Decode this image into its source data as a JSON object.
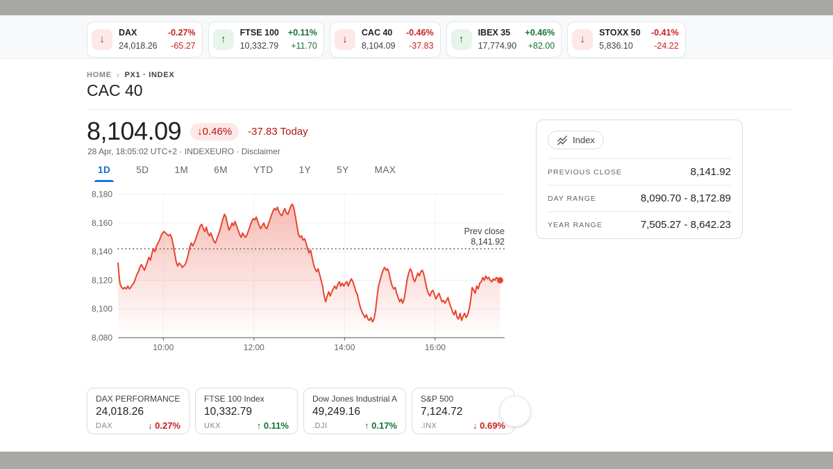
{
  "ticker": {
    "items": [
      {
        "name": "DAX",
        "value": "24,018.26",
        "pct": "-0.27%",
        "change": "-65.27",
        "direction": "down",
        "glyph": "↓"
      },
      {
        "name": "FTSE 100",
        "value": "10,332.79",
        "pct": "+0.11%",
        "change": "+11.70",
        "direction": "up",
        "glyph": "↑"
      },
      {
        "name": "CAC 40",
        "value": "8,104.09",
        "pct": "-0.46%",
        "change": "-37.83",
        "direction": "down",
        "glyph": "↓"
      },
      {
        "name": "IBEX 35",
        "value": "17,774.90",
        "pct": "+0.46%",
        "change": "+82.00",
        "direction": "up",
        "glyph": "↑"
      },
      {
        "name": "STOXX 50",
        "value": "5,836.10",
        "pct": "-0.41%",
        "change": "-24.22",
        "direction": "down",
        "glyph": "↓"
      }
    ]
  },
  "breadcrumb": {
    "home": "HOME",
    "separator": "›",
    "current": "PX1 · INDEX"
  },
  "header": {
    "title": "CAC 40"
  },
  "quote": {
    "price": "8,104.09",
    "badge": {
      "glyph": "↓",
      "pct": "0.46%"
    },
    "change_today": "-37.83 Today",
    "meta_prefix": "28 Apr, 18:05:02 UTC+2 · INDEXEURO · ",
    "disclaimer": "Disclaimer"
  },
  "tabs": [
    {
      "label": "1D"
    },
    {
      "label": "5D"
    },
    {
      "label": "1M"
    },
    {
      "label": "6M"
    },
    {
      "label": "YTD"
    },
    {
      "label": "1Y"
    },
    {
      "label": "5Y"
    },
    {
      "label": "MAX"
    }
  ],
  "chart_data": {
    "type": "line",
    "title": "CAC 40 intraday price",
    "line_color": "#e8442e",
    "grid": true,
    "xlim": [
      540,
      1052
    ],
    "ylim": [
      8080,
      8180
    ],
    "x_ticks": [
      {
        "t": 600,
        "label": "10:00"
      },
      {
        "t": 720,
        "label": "12:00"
      },
      {
        "t": 840,
        "label": "14:00"
      },
      {
        "t": 960,
        "label": "16:00"
      }
    ],
    "y_ticks": [
      {
        "v": 8080,
        "label": "8,080"
      },
      {
        "v": 8100,
        "label": "8,100"
      },
      {
        "v": 8120,
        "label": "8,120"
      },
      {
        "v": 8140,
        "label": "8,140"
      },
      {
        "v": 8160,
        "label": "8,160"
      },
      {
        "v": 8180,
        "label": "8,180"
      }
    ],
    "prev_close": {
      "value": 8141.92,
      "label_line1": "Prev close",
      "label_line2": "8,141.92"
    },
    "series": [
      {
        "name": "CAC 40",
        "points": [
          [
            540,
            8132
          ],
          [
            541,
            8126
          ],
          [
            542,
            8120
          ],
          [
            543,
            8117
          ],
          [
            545,
            8115
          ],
          [
            547,
            8114
          ],
          [
            549,
            8115
          ],
          [
            551,
            8114
          ],
          [
            553,
            8116
          ],
          [
            555,
            8114
          ],
          [
            557,
            8115
          ],
          [
            559,
            8117
          ],
          [
            561,
            8118
          ],
          [
            563,
            8121
          ],
          [
            565,
            8124
          ],
          [
            567,
            8126
          ],
          [
            569,
            8129
          ],
          [
            571,
            8131
          ],
          [
            573,
            8129
          ],
          [
            575,
            8127
          ],
          [
            577,
            8130
          ],
          [
            579,
            8133
          ],
          [
            581,
            8136
          ],
          [
            583,
            8134
          ],
          [
            585,
            8139
          ],
          [
            587,
            8142
          ],
          [
            589,
            8140
          ],
          [
            591,
            8144
          ],
          [
            593,
            8146
          ],
          [
            595,
            8148
          ],
          [
            597,
            8151
          ],
          [
            599,
            8153
          ],
          [
            601,
            8154
          ],
          [
            603,
            8153
          ],
          [
            605,
            8152
          ],
          [
            607,
            8151
          ],
          [
            609,
            8152
          ],
          [
            611,
            8150
          ],
          [
            613,
            8145
          ],
          [
            615,
            8139
          ],
          [
            617,
            8133
          ],
          [
            619,
            8130
          ],
          [
            621,
            8132
          ],
          [
            623,
            8131
          ],
          [
            625,
            8129
          ],
          [
            627,
            8130
          ],
          [
            629,
            8131
          ],
          [
            631,
            8134
          ],
          [
            633,
            8138
          ],
          [
            635,
            8143
          ],
          [
            637,
            8146
          ],
          [
            639,
            8144
          ],
          [
            641,
            8146
          ],
          [
            643,
            8149
          ],
          [
            645,
            8152
          ],
          [
            647,
            8155
          ],
          [
            649,
            8158
          ],
          [
            651,
            8159
          ],
          [
            653,
            8156
          ],
          [
            655,
            8154
          ],
          [
            657,
            8157
          ],
          [
            659,
            8153
          ],
          [
            661,
            8151
          ],
          [
            663,
            8153
          ],
          [
            665,
            8150
          ],
          [
            667,
            8147
          ],
          [
            669,
            8146
          ],
          [
            671,
            8149
          ],
          [
            673,
            8152
          ],
          [
            675,
            8155
          ],
          [
            677,
            8159
          ],
          [
            679,
            8163
          ],
          [
            681,
            8166
          ],
          [
            683,
            8164
          ],
          [
            685,
            8159
          ],
          [
            687,
            8155
          ],
          [
            689,
            8157
          ],
          [
            691,
            8160
          ],
          [
            693,
            8158
          ],
          [
            695,
            8161
          ],
          [
            697,
            8158
          ],
          [
            699,
            8155
          ],
          [
            701,
            8152
          ],
          [
            703,
            8150
          ],
          [
            705,
            8153
          ],
          [
            707,
            8151
          ],
          [
            709,
            8150
          ],
          [
            711,
            8152
          ],
          [
            713,
            8155
          ],
          [
            715,
            8158
          ],
          [
            717,
            8161
          ],
          [
            719,
            8163
          ],
          [
            721,
            8162
          ],
          [
            723,
            8164
          ],
          [
            725,
            8161
          ],
          [
            727,
            8158
          ],
          [
            729,
            8156
          ],
          [
            731,
            8158
          ],
          [
            733,
            8160
          ],
          [
            735,
            8157
          ],
          [
            737,
            8156
          ],
          [
            739,
            8159
          ],
          [
            741,
            8162
          ],
          [
            743,
            8165
          ],
          [
            745,
            8168
          ],
          [
            747,
            8170
          ],
          [
            749,
            8169
          ],
          [
            751,
            8171
          ],
          [
            753,
            8168
          ],
          [
            755,
            8166
          ],
          [
            757,
            8165
          ],
          [
            759,
            8168
          ],
          [
            761,
            8170
          ],
          [
            763,
            8167
          ],
          [
            765,
            8166
          ],
          [
            767,
            8169
          ],
          [
            769,
            8172
          ],
          [
            771,
            8173
          ],
          [
            773,
            8170
          ],
          [
            775,
            8164
          ],
          [
            777,
            8158
          ],
          [
            779,
            8152
          ],
          [
            781,
            8150
          ],
          [
            783,
            8151
          ],
          [
            785,
            8148
          ],
          [
            787,
            8149
          ],
          [
            789,
            8146
          ],
          [
            791,
            8142
          ],
          [
            793,
            8139
          ],
          [
            795,
            8141
          ],
          [
            797,
            8136
          ],
          [
            799,
            8131
          ],
          [
            801,
            8128
          ],
          [
            803,
            8126
          ],
          [
            805,
            8128
          ],
          [
            807,
            8124
          ],
          [
            809,
            8120
          ],
          [
            811,
            8116
          ],
          [
            813,
            8109
          ],
          [
            815,
            8105
          ],
          [
            817,
            8109
          ],
          [
            819,
            8112
          ],
          [
            821,
            8109
          ],
          [
            823,
            8112
          ],
          [
            825,
            8114
          ],
          [
            827,
            8116
          ],
          [
            829,
            8114
          ],
          [
            831,
            8117
          ],
          [
            833,
            8119
          ],
          [
            835,
            8116
          ],
          [
            837,
            8118
          ],
          [
            839,
            8116
          ],
          [
            841,
            8118
          ],
          [
            843,
            8119
          ],
          [
            845,
            8116
          ],
          [
            847,
            8119
          ],
          [
            849,
            8121
          ],
          [
            851,
            8119
          ],
          [
            853,
            8116
          ],
          [
            855,
            8112
          ],
          [
            857,
            8110
          ],
          [
            859,
            8105
          ],
          [
            861,
            8101
          ],
          [
            863,
            8098
          ],
          [
            865,
            8096
          ],
          [
            867,
            8094
          ],
          [
            869,
            8096
          ],
          [
            871,
            8093
          ],
          [
            873,
            8092
          ],
          [
            875,
            8094
          ],
          [
            877,
            8091
          ],
          [
            879,
            8093
          ],
          [
            881,
            8099
          ],
          [
            883,
            8108
          ],
          [
            885,
            8116
          ],
          [
            887,
            8120
          ],
          [
            889,
            8124
          ],
          [
            891,
            8127
          ],
          [
            893,
            8129
          ],
          [
            895,
            8127
          ],
          [
            897,
            8128
          ],
          [
            899,
            8125
          ],
          [
            901,
            8120
          ],
          [
            903,
            8116
          ],
          [
            905,
            8114
          ],
          [
            907,
            8115
          ],
          [
            909,
            8111
          ],
          [
            911,
            8108
          ],
          [
            913,
            8105
          ],
          [
            915,
            8107
          ],
          [
            917,
            8104
          ],
          [
            919,
            8107
          ],
          [
            921,
            8114
          ],
          [
            923,
            8121
          ],
          [
            925,
            8125
          ],
          [
            927,
            8128
          ],
          [
            929,
            8126
          ],
          [
            931,
            8121
          ],
          [
            933,
            8119
          ],
          [
            935,
            8122
          ],
          [
            937,
            8125
          ],
          [
            939,
            8123
          ],
          [
            941,
            8126
          ],
          [
            943,
            8127
          ],
          [
            945,
            8124
          ],
          [
            947,
            8119
          ],
          [
            949,
            8114
          ],
          [
            951,
            8111
          ],
          [
            953,
            8109
          ],
          [
            955,
            8112
          ],
          [
            957,
            8113
          ],
          [
            959,
            8110
          ],
          [
            961,
            8107
          ],
          [
            963,
            8109
          ],
          [
            965,
            8111
          ],
          [
            967,
            8108
          ],
          [
            969,
            8105
          ],
          [
            971,
            8106
          ],
          [
            973,
            8104
          ],
          [
            975,
            8106
          ],
          [
            977,
            8108
          ],
          [
            979,
            8104
          ],
          [
            981,
            8101
          ],
          [
            983,
            8098
          ],
          [
            985,
            8096
          ],
          [
            987,
            8099
          ],
          [
            989,
            8094
          ],
          [
            991,
            8093
          ],
          [
            993,
            8097
          ],
          [
            995,
            8092
          ],
          [
            997,
            8095
          ],
          [
            999,
            8097
          ],
          [
            1001,
            8094
          ],
          [
            1003,
            8096
          ],
          [
            1005,
            8100
          ],
          [
            1007,
            8106
          ],
          [
            1009,
            8115
          ],
          [
            1011,
            8113
          ],
          [
            1013,
            8111
          ],
          [
            1015,
            8116
          ],
          [
            1017,
            8114
          ],
          [
            1019,
            8118
          ],
          [
            1021,
            8119
          ],
          [
            1023,
            8122
          ],
          [
            1025,
            8120
          ],
          [
            1027,
            8123
          ],
          [
            1029,
            8121
          ],
          [
            1031,
            8122
          ],
          [
            1033,
            8120
          ],
          [
            1035,
            8119
          ],
          [
            1037,
            8121
          ],
          [
            1039,
            8120
          ],
          [
            1041,
            8122
          ],
          [
            1043,
            8121
          ],
          [
            1045,
            8120
          ],
          [
            1046,
            8120
          ]
        ]
      }
    ]
  },
  "stats": {
    "chip_label": "Index",
    "rows": [
      {
        "label": "PREVIOUS CLOSE",
        "value": "8,141.92"
      },
      {
        "label": "DAY RANGE",
        "value": "8,090.70 - 8,172.89"
      },
      {
        "label": "YEAR RANGE",
        "value": "7,505.27 - 8,642.23"
      }
    ]
  },
  "compare": {
    "cards": [
      {
        "name": "DAX PERFORMANCE-I...",
        "value": "24,018.26",
        "symbol": "DAX",
        "pct": "0.27%",
        "direction": "down",
        "glyph": "↓"
      },
      {
        "name": "FTSE 100 Index",
        "value": "10,332.79",
        "symbol": "UKX",
        "pct": "0.11%",
        "direction": "up",
        "glyph": "↑"
      },
      {
        "name": "Dow Jones Industrial A...",
        "value": "49,249.16",
        "symbol": ".DJI",
        "pct": "0.17%",
        "direction": "up",
        "glyph": "↑"
      },
      {
        "name": "S&P 500",
        "value": "7,124.72",
        "symbol": ".INX",
        "pct": "0.69%",
        "direction": "down",
        "glyph": "↓"
      }
    ]
  }
}
